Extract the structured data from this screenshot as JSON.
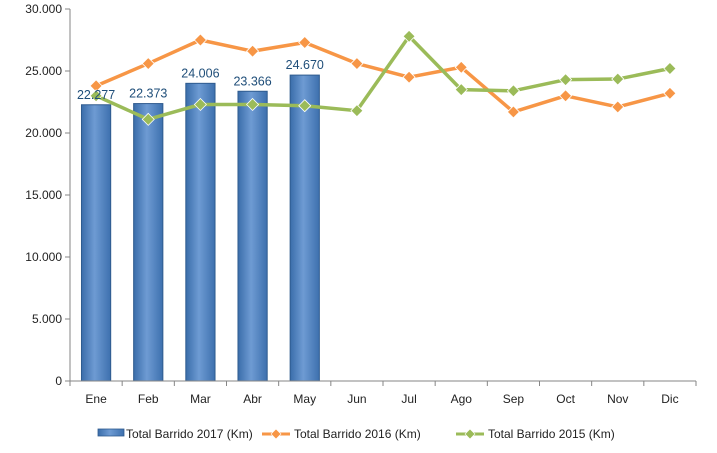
{
  "chart_data": {
    "type": "bar",
    "categories": [
      "Ene",
      "Feb",
      "Mar",
      "Abr",
      "May",
      "Jun",
      "Jul",
      "Ago",
      "Sep",
      "Oct",
      "Nov",
      "Dic"
    ],
    "ylim": [
      0,
      30000
    ],
    "yticks": [
      0,
      5000,
      10000,
      15000,
      20000,
      25000,
      30000
    ],
    "ytick_labels": [
      "0",
      "5.000",
      "10.000",
      "15.000",
      "20.000",
      "25.000",
      "30.000"
    ],
    "grid": false,
    "legend_position": "bottom",
    "series": [
      {
        "name": "Total Barrido 2017 (Km)",
        "kind": "bar",
        "color": "#4F81BD",
        "values": [
          22277,
          22373,
          24006,
          23366,
          24670,
          null,
          null,
          null,
          null,
          null,
          null,
          null
        ],
        "data_labels": [
          "22.277",
          "22.373",
          "24.006",
          "23.366",
          "24.670"
        ]
      },
      {
        "name": "Total Barrido 2016 (Km)",
        "kind": "line",
        "color": "#F79646",
        "marker": "diamond",
        "values": [
          23800,
          25600,
          27500,
          26600,
          27300,
          25600,
          24500,
          25300,
          21700,
          23000,
          22100,
          23200
        ]
      },
      {
        "name": "Total Barrido 2015 (Km)",
        "kind": "line",
        "color": "#9BBB59",
        "marker": "diamond",
        "values": [
          23000,
          21100,
          22300,
          22300,
          22200,
          21800,
          27800,
          23500,
          23400,
          24300,
          24350,
          25200
        ]
      }
    ]
  }
}
